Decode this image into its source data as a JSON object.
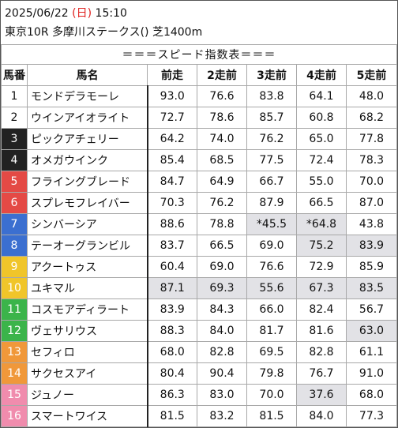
{
  "header": {
    "date": "2025/06/22",
    "dow_open": "(",
    "dow": "日",
    "dow_close": ")",
    "time": "15:10",
    "race": "東京10R 多摩川ステークス() 芝1400m"
  },
  "table_title": "＝＝＝スピード指数表＝＝＝",
  "columns": [
    "馬番",
    "馬名",
    "前走",
    "2走前",
    "3走前",
    "4走前",
    "5走前"
  ],
  "rows": [
    {
      "no": "1",
      "name": "モンドデラモーレ",
      "v": [
        "93.0",
        "76.6",
        "83.8",
        "64.1",
        "48.0"
      ],
      "hl": [
        false,
        false,
        false,
        false,
        false
      ]
    },
    {
      "no": "2",
      "name": "ウインアイオライト",
      "v": [
        "72.7",
        "78.6",
        "85.7",
        "60.8",
        "68.2"
      ],
      "hl": [
        false,
        false,
        false,
        false,
        false
      ]
    },
    {
      "no": "3",
      "name": "ピックアチェリー",
      "v": [
        "64.2",
        "74.0",
        "76.2",
        "65.0",
        "77.8"
      ],
      "hl": [
        false,
        false,
        false,
        false,
        false
      ]
    },
    {
      "no": "4",
      "name": "オメガウインク",
      "v": [
        "85.4",
        "68.5",
        "77.5",
        "72.4",
        "78.3"
      ],
      "hl": [
        false,
        false,
        false,
        false,
        false
      ]
    },
    {
      "no": "5",
      "name": "フライングブレード",
      "v": [
        "84.7",
        "64.9",
        "66.7",
        "55.0",
        "70.0"
      ],
      "hl": [
        false,
        false,
        false,
        false,
        false
      ]
    },
    {
      "no": "6",
      "name": "スプレモフレイバー",
      "v": [
        "70.3",
        "76.2",
        "87.9",
        "66.5",
        "87.0"
      ],
      "hl": [
        false,
        false,
        false,
        false,
        false
      ]
    },
    {
      "no": "7",
      "name": "シンバーシア",
      "v": [
        "88.6",
        "78.8",
        "*45.5",
        "*64.8",
        "43.8"
      ],
      "hl": [
        false,
        false,
        true,
        true,
        false
      ]
    },
    {
      "no": "8",
      "name": "テーオーグランビル",
      "v": [
        "83.7",
        "66.5",
        "69.0",
        "75.2",
        "83.9"
      ],
      "hl": [
        false,
        false,
        false,
        true,
        true
      ]
    },
    {
      "no": "9",
      "name": "アクートゥス",
      "v": [
        "60.4",
        "69.0",
        "76.6",
        "72.9",
        "85.9"
      ],
      "hl": [
        false,
        false,
        false,
        false,
        false
      ]
    },
    {
      "no": "10",
      "name": "ユキマル",
      "v": [
        "87.1",
        "69.3",
        "55.6",
        "67.3",
        "83.5"
      ],
      "hl": [
        true,
        true,
        true,
        true,
        true
      ]
    },
    {
      "no": "11",
      "name": "コスモアディラート",
      "v": [
        "83.9",
        "84.3",
        "66.0",
        "82.4",
        "56.7"
      ],
      "hl": [
        false,
        false,
        false,
        false,
        false
      ]
    },
    {
      "no": "12",
      "name": "ヴェサリウス",
      "v": [
        "88.3",
        "84.0",
        "81.7",
        "81.6",
        "63.0"
      ],
      "hl": [
        false,
        false,
        false,
        false,
        true
      ]
    },
    {
      "no": "13",
      "name": "セフィロ",
      "v": [
        "68.0",
        "82.8",
        "69.5",
        "82.8",
        "61.1"
      ],
      "hl": [
        false,
        false,
        false,
        false,
        false
      ]
    },
    {
      "no": "14",
      "name": "サクセスアイ",
      "v": [
        "80.4",
        "90.4",
        "79.8",
        "76.7",
        "91.0"
      ],
      "hl": [
        false,
        false,
        false,
        false,
        false
      ]
    },
    {
      "no": "15",
      "name": "ジュノー",
      "v": [
        "86.3",
        "83.0",
        "70.0",
        "37.6",
        "68.0"
      ],
      "hl": [
        false,
        false,
        false,
        true,
        false
      ]
    },
    {
      "no": "16",
      "name": "スマートワイス",
      "v": [
        "81.5",
        "83.2",
        "81.5",
        "84.0",
        "77.3"
      ],
      "hl": [
        false,
        false,
        false,
        false,
        false
      ]
    }
  ],
  "colors": {
    "waku1": "#ffffff",
    "waku2": "#222222",
    "waku3": "#e44a45",
    "waku4": "#3b6fd0",
    "waku5": "#f0c52a",
    "waku6": "#3bb44a",
    "waku7": "#f0983a",
    "waku8": "#f08cad",
    "highlight": "#e2e2e6",
    "dow": "#e0201e"
  }
}
